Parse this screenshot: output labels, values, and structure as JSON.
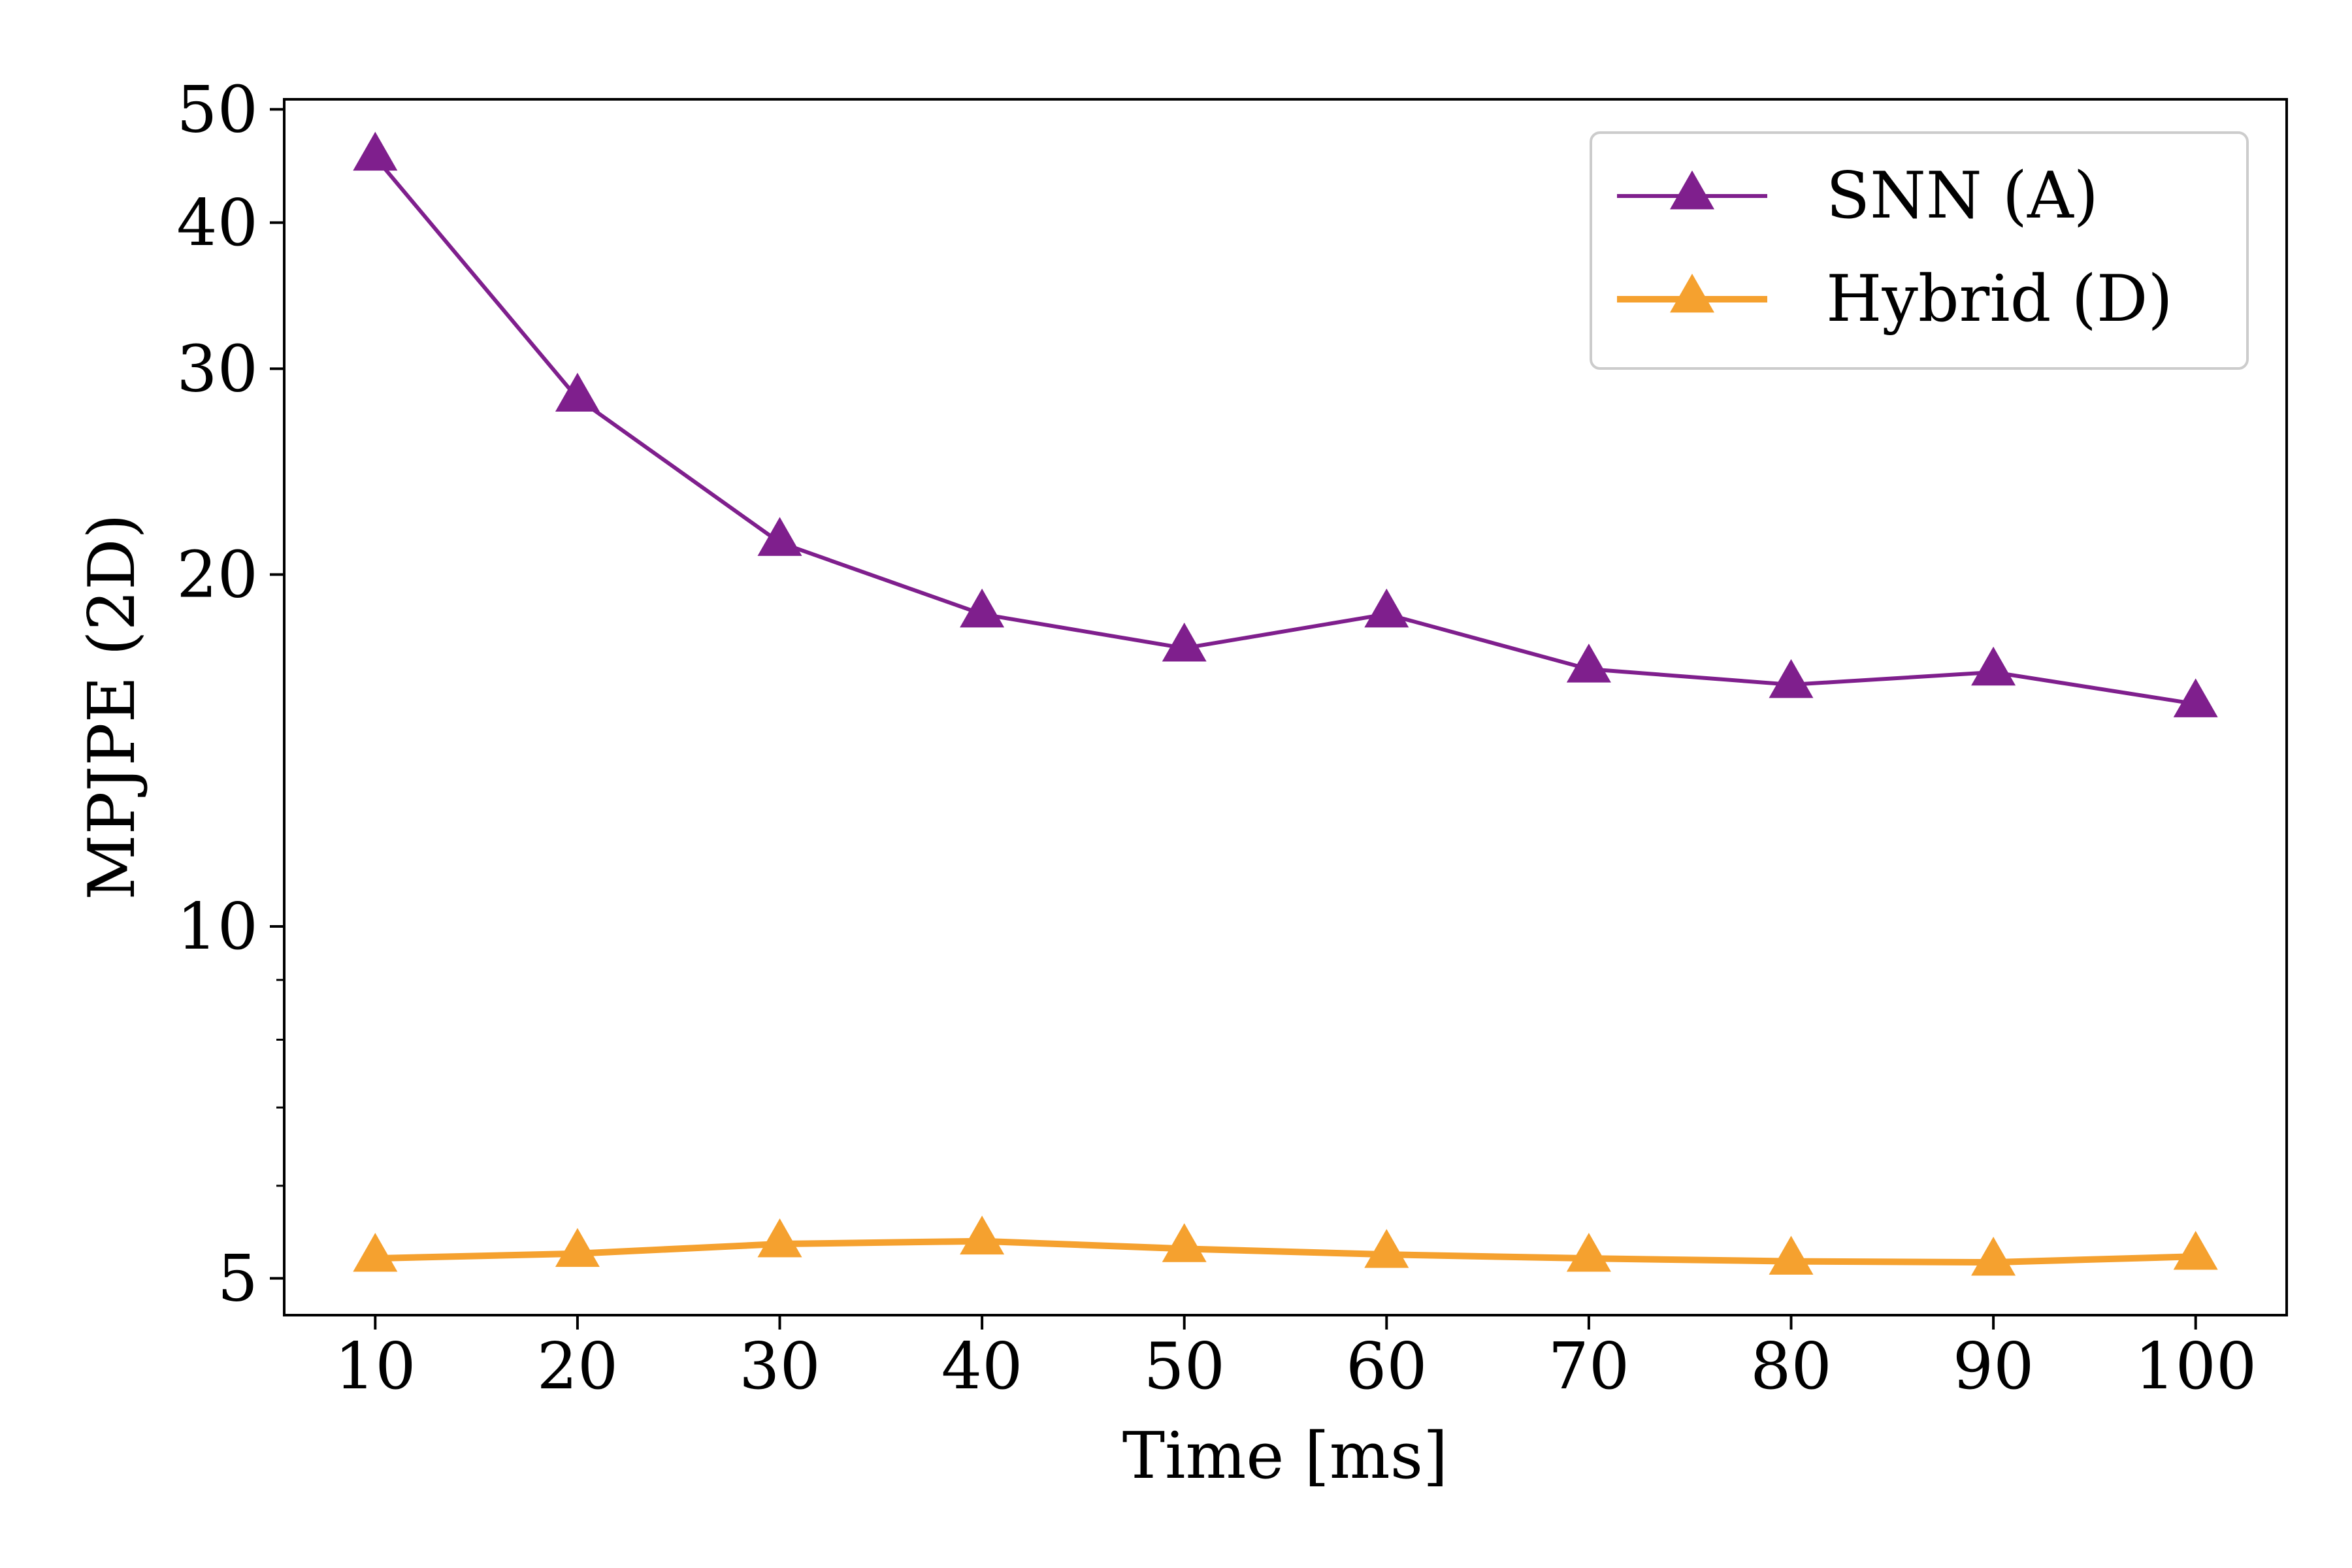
{
  "chart_data": {
    "type": "line",
    "title": "",
    "xlabel": "Time [ms]",
    "ylabel": "MPJPE (2D)",
    "x": [
      10,
      20,
      30,
      40,
      50,
      60,
      70,
      80,
      90,
      100
    ],
    "xticks": [
      "10",
      "20",
      "30",
      "40",
      "50",
      "60",
      "70",
      "80",
      "90",
      "100"
    ],
    "yscale": "log",
    "ylim": [
      4.65,
      51
    ],
    "yticks": [
      5,
      10,
      20,
      30,
      40,
      50
    ],
    "ytick_labels": [
      "5",
      "10",
      "20",
      "30",
      "40",
      "50"
    ],
    "yminor_ticks": [
      6,
      7,
      8,
      9
    ],
    "grid": false,
    "legend_position": "top-right",
    "series": [
      {
        "name": "SNN (A)",
        "color": "#7f1f8d",
        "marker": "triangle-up",
        "values": [
          45.5,
          28.3,
          21.3,
          18.5,
          17.3,
          18.5,
          16.6,
          16.1,
          16.5,
          15.5
        ]
      },
      {
        "name": "Hybrid (D)",
        "color": "#f5a12f",
        "marker": "triangle-up",
        "values": [
          5.2,
          5.25,
          5.35,
          5.38,
          5.3,
          5.24,
          5.2,
          5.17,
          5.16,
          5.22
        ]
      }
    ]
  }
}
